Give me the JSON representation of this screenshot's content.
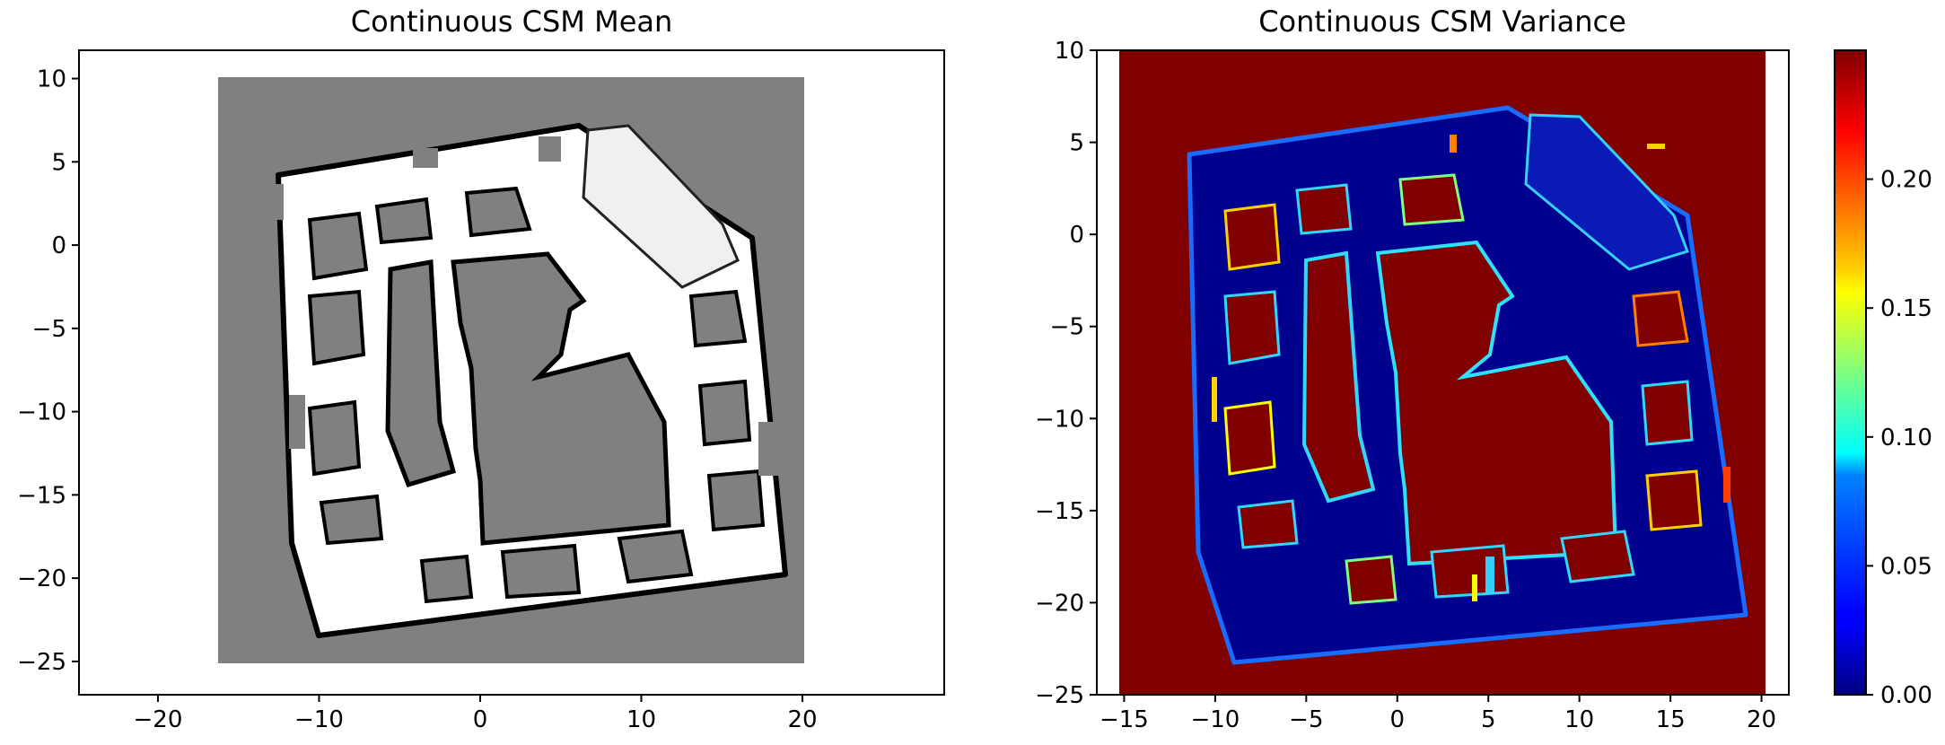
{
  "chart_data": [
    {
      "type": "heatmap",
      "title": "Continuous CSM Mean",
      "xlabel": "",
      "ylabel": "",
      "xlim": [
        -24.9,
        28.8
      ],
      "ylim": [
        -27.0,
        11.7
      ],
      "xticks": [
        "−20",
        "−10",
        "0",
        "10",
        "20"
      ],
      "xtick_values": [
        -20,
        -10,
        0,
        10,
        20
      ],
      "yticks": [
        "10",
        "5",
        "0",
        "−5",
        "−10",
        "−15",
        "−20",
        "−25"
      ],
      "ytick_values": [
        10,
        5,
        0,
        -5,
        -10,
        -15,
        -20,
        -25
      ],
      "map_extent": {
        "x": [
          -15,
          20.2
        ],
        "y": [
          -25,
          10.2
        ]
      },
      "colormap": "gray",
      "colors": {
        "unknown": "#808080",
        "free": "#ffffff",
        "occupied": "#000000"
      }
    },
    {
      "type": "heatmap",
      "title": "Continuous CSM Variance",
      "xlabel": "",
      "ylabel": "",
      "xlim": [
        -16.5,
        21.5
      ],
      "ylim": [
        -25,
        10
      ],
      "xticks": [
        "−15",
        "−10",
        "−5",
        "0",
        "5",
        "10",
        "15",
        "20"
      ],
      "xtick_values": [
        -15,
        -10,
        -5,
        0,
        5,
        10,
        15,
        20
      ],
      "yticks": [
        "10",
        "5",
        "0",
        "−5",
        "−10",
        "−15",
        "−20",
        "−25"
      ],
      "ytick_values": [
        10,
        5,
        0,
        -5,
        -10,
        -15,
        -20,
        -25
      ],
      "map_extent": {
        "x": [
          -15,
          20.2
        ],
        "y": [
          -25,
          10
        ]
      },
      "colormap": "jet",
      "colors": {
        "high_variance": "#800000",
        "low_variance": "#00008f"
      },
      "colorbar": {
        "range": [
          0,
          0.25
        ],
        "ticks": [
          "0.00",
          "0.05",
          "0.10",
          "0.15",
          "0.20"
        ],
        "tick_values": [
          0,
          0.05,
          0.1,
          0.15,
          0.2
        ]
      }
    }
  ]
}
